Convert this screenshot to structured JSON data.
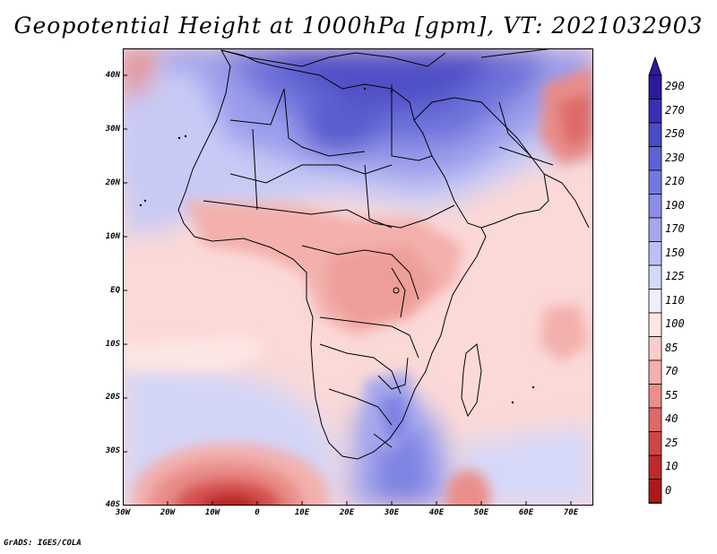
{
  "title": "Geopotential Height at 1000hPa [gpm], VT: 2021032903",
  "map": {
    "variable": "Geopotential Height",
    "level": "1000hPa",
    "units": "gpm",
    "valid_time": "2021032903",
    "lat_labels": [
      "40N",
      "30N",
      "20N",
      "10N",
      "EQ",
      "10S",
      "20S",
      "30S",
      "40S"
    ],
    "lon_labels": [
      "30W",
      "20W",
      "10W",
      "0",
      "10E",
      "20E",
      "30E",
      "40E",
      "50E",
      "60E",
      "70E"
    ],
    "lon_range": [
      -30,
      75
    ],
    "lat_range": [
      -40,
      45
    ]
  },
  "colorbar": {
    "labels": [
      "290",
      "270",
      "250",
      "230",
      "210",
      "190",
      "170",
      "150",
      "125",
      "110",
      "100",
      "85",
      "70",
      "55",
      "40",
      "25",
      "10",
      "0"
    ],
    "colors": [
      "#2a1a9c",
      "#3a31b2",
      "#4a4bc6",
      "#5d62d4",
      "#7377df",
      "#8b8ee7",
      "#a4a7ee",
      "#bdbff4",
      "#d6d8f9",
      "#eeeffd",
      "#fde6e4",
      "#f9cdca",
      "#f3b0ad",
      "#ea8f8b",
      "#dd6a67",
      "#cf4644",
      "#bf2a2a",
      "#a81a1c"
    ]
  },
  "credit": "GrADS: IGES/COLA"
}
